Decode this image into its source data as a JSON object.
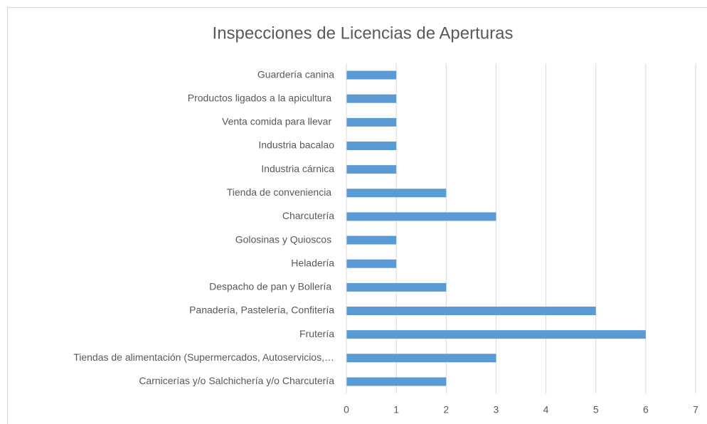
{
  "chart_data": {
    "type": "bar",
    "orientation": "horizontal",
    "title": "Inspecciones de Licencias de Aperturas",
    "categories": [
      "Guardería canina",
      "Productos ligados a la apicultura ",
      "Venta comida para llevar ",
      "Industria bacalao",
      "Industria cárnica",
      "Tienda de conveniencia ",
      "Charcutería",
      "Golosinas y Quioscos ",
      "Heladería",
      "Despacho de pan y Bollería ",
      "Panadería, Pastelería, Confitería",
      "Frutería",
      "Tiendas de alimentación (Supermercados, Autoservicios,…",
      "Carnicerías y/o Salchichería y/o Charcutería"
    ],
    "values": [
      1,
      1,
      1,
      1,
      1,
      2,
      3,
      1,
      1,
      2,
      5,
      6,
      3,
      2
    ],
    "color": "#5b9bd5",
    "xlim": [
      0,
      7
    ],
    "xticks": [
      0,
      1,
      2,
      3,
      4,
      5,
      6,
      7
    ],
    "grid": true
  }
}
